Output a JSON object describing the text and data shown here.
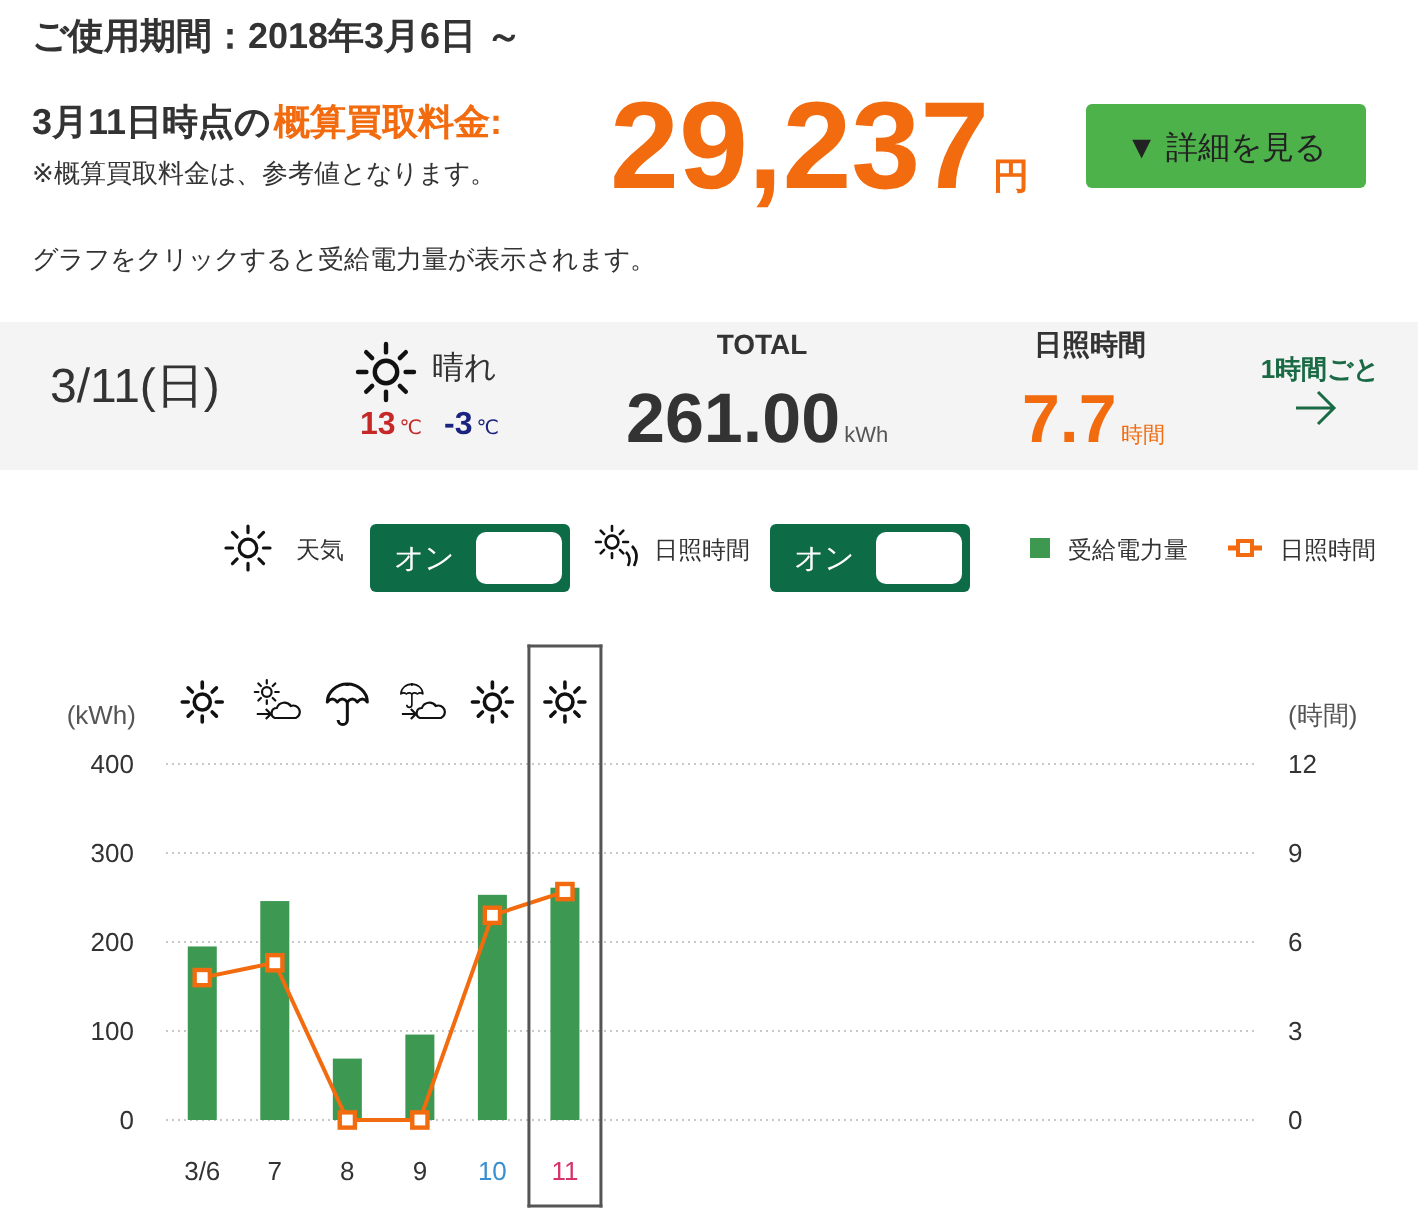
{
  "chart_data": [
    {
      "type": "other",
      "title": "ご使用期間：2018年3月6日 ～",
      "annotations": [
        "3月11日時点の",
        "概算買取料金:",
        "※概算買取料金は、参考値となります。",
        "29,237",
        "円",
        "▼ 詳細を見る",
        "グラフをクリックすると受給電力量が表示されます。",
        "3/11(日)",
        "晴れ",
        "13",
        "℃",
        "-3",
        "℃",
        "TOTAL",
        "261.00",
        "kWh",
        "日照時間",
        "7.7",
        "時間",
        "1時間ごと"
      ]
    },
    {
      "type": "bar",
      "categories": [
        "3/6",
        "7",
        "8",
        "9",
        "10",
        "11",
        null,
        null,
        null,
        null,
        null,
        null,
        null,
        null,
        null
      ],
      "series": [
        {
          "name": "受給電力量",
          "type": "bar",
          "color": "#3d9951",
          "values": [
            195,
            246,
            69,
            96,
            253,
            261,
            null,
            null,
            null,
            null,
            null,
            null,
            null,
            null,
            null
          ]
        },
        {
          "name": "日照時間",
          "type": "line",
          "axis": "y2",
          "color": "#f26b0f",
          "marker": "square",
          "values": [
            4.8,
            5.3,
            0,
            0,
            6.9,
            7.7,
            null,
            null,
            null,
            null,
            null,
            null,
            null,
            null,
            null
          ]
        }
      ],
      "ylabel": "(kWh)",
      "y2label": "(時間)",
      "ylim": [
        0,
        400
      ],
      "yticks": [
        0,
        100,
        200,
        300,
        400
      ],
      "y2lim": [
        0,
        12
      ],
      "y2ticks": [
        0,
        3,
        6,
        9,
        12
      ],
      "grid": "y",
      "legend": "top right",
      "annotations": [
        "天気",
        "オン",
        "日照時間",
        "オン"
      ]
    }
  ]
}
